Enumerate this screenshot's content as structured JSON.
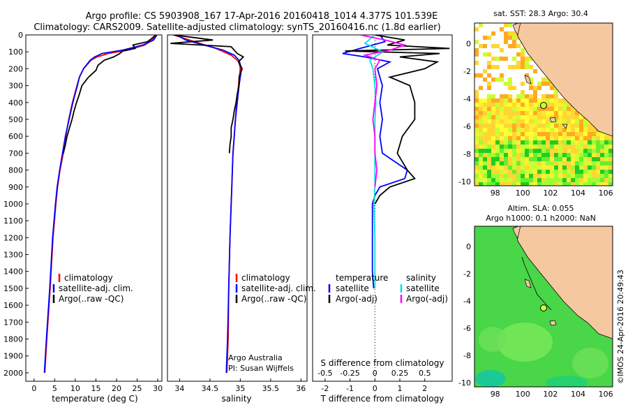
{
  "header": {
    "line1": "Argo profile: CS 5903908_167 17-Apr-2016 20160418_1014 4.377S 101.539E",
    "line2": "Climatology: CARS2009. Satellite-adjusted climatology: synTS_20160416.nc (1.8d earlier)"
  },
  "colors": {
    "climatology": "#ff0000",
    "satellite": "#0000ff",
    "argo": "#000000",
    "sat_s": "#00e0e0",
    "argo_s": "#ff00ff",
    "land": "#f5c8a0"
  },
  "chart_data": [
    {
      "type": "line",
      "title": "",
      "xlabel": "temperature (deg C)",
      "ylabel": "",
      "xlim": [
        -2,
        31
      ],
      "ylim": [
        2050,
        0
      ],
      "xticks": [
        "0",
        "5",
        "10",
        "15",
        "20",
        "25",
        "30"
      ],
      "yticks": [
        "0",
        "100",
        "200",
        "300",
        "400",
        "500",
        "600",
        "700",
        "800",
        "900",
        "1000",
        "1100",
        "1200",
        "1300",
        "1400",
        "1500",
        "1600",
        "1700",
        "1800",
        "1900",
        "2000"
      ],
      "legend": [
        "climatology",
        "satellite-adj. clim.",
        "Argo(..raw -QC)"
      ],
      "legend_position": "lower-center",
      "series": [
        {
          "name": "climatology",
          "color": "#ff0000",
          "depth": [
            0,
            30,
            60,
            90,
            110,
            130,
            150,
            200,
            250,
            300,
            400,
            500,
            600,
            700,
            800,
            900,
            1000,
            1200,
            1500,
            1800,
            2000
          ],
          "values": [
            29.6,
            28.6,
            26.8,
            22.8,
            18.0,
            15.3,
            13.8,
            12.0,
            11.0,
            10.4,
            9.3,
            8.4,
            7.7,
            7.1,
            6.3,
            5.7,
            5.3,
            4.6,
            3.9,
            3.1,
            2.6
          ]
        },
        {
          "name": "satellite-adj. clim.",
          "color": "#0000ff",
          "depth": [
            0,
            30,
            60,
            90,
            110,
            130,
            150,
            200,
            250,
            300,
            400,
            500,
            600,
            700,
            800,
            900,
            1000,
            1200,
            1500,
            1800,
            2000
          ],
          "values": [
            29.8,
            29.0,
            26.4,
            21.5,
            16.5,
            14.7,
            13.6,
            12.0,
            11.0,
            10.5,
            9.4,
            8.5,
            7.6,
            6.9,
            6.2,
            5.6,
            5.2,
            4.5,
            3.8,
            3.0,
            2.5
          ]
        },
        {
          "name": "Argo(..raw -QC)",
          "color": "#000000",
          "depth": [
            0,
            20,
            40,
            60,
            80,
            95,
            110,
            130,
            150,
            180,
            210,
            250,
            300,
            350,
            400,
            450,
            500,
            550,
            600,
            650,
            700
          ],
          "values": [
            29.5,
            28.6,
            27.5,
            24.0,
            24.5,
            21.5,
            20.8,
            19.3,
            17.0,
            15.5,
            15.0,
            13.2,
            11.6,
            11.0,
            10.3,
            9.7,
            9.2,
            8.6,
            8.0,
            7.6,
            7.1
          ]
        }
      ]
    },
    {
      "type": "line",
      "title": "",
      "xlabel": "salinity",
      "ylabel": "",
      "xlim": [
        33.8,
        36.1
      ],
      "ylim": [
        2050,
        0
      ],
      "xticks": [
        "34",
        "34.5",
        "35",
        "35.5",
        "36"
      ],
      "legend": [
        "climatology",
        "satellite-adj. clim.",
        "Argo(..raw -QC)"
      ],
      "legend_position": "lower-center",
      "annotation": [
        "Argo Australia",
        "PI: Susan Wijffels"
      ],
      "series": [
        {
          "name": "climatology",
          "color": "#ff0000",
          "depth": [
            0,
            40,
            80,
            120,
            160,
            200,
            300,
            400,
            500,
            600,
            700,
            800,
            900,
            1000,
            1200,
            1500,
            1800,
            2000
          ],
          "values": [
            33.9,
            34.25,
            34.6,
            34.85,
            34.98,
            35.0,
            34.97,
            34.94,
            34.92,
            34.9,
            34.88,
            34.87,
            34.86,
            34.85,
            34.83,
            34.81,
            34.8,
            34.78
          ]
        },
        {
          "name": "satellite-adj. clim.",
          "color": "#0000ff",
          "depth": [
            0,
            30,
            60,
            90,
            120,
            150,
            200,
            300,
            400,
            500,
            600,
            700,
            800,
            900,
            1000,
            1200,
            1500,
            1800,
            2000
          ],
          "values": [
            33.95,
            34.1,
            34.4,
            34.72,
            34.9,
            34.98,
            35.02,
            34.98,
            34.95,
            34.92,
            34.9,
            34.88,
            34.87,
            34.86,
            34.85,
            34.83,
            34.81,
            34.79,
            34.77
          ]
        },
        {
          "name": "Argo(..raw -QC)",
          "color": "#000000",
          "depth": [
            0,
            30,
            50,
            70,
            90,
            110,
            130,
            160,
            200,
            250,
            300,
            350,
            400,
            450,
            500,
            550,
            600,
            650,
            700
          ],
          "values": [
            33.9,
            34.55,
            33.85,
            34.85,
            34.9,
            34.95,
            35.05,
            34.97,
            35.03,
            34.98,
            34.98,
            34.95,
            34.93,
            34.9,
            34.88,
            34.85,
            34.85,
            34.83,
            34.82
          ]
        }
      ]
    },
    {
      "type": "line",
      "title": "",
      "xlabel": "T difference from climatology",
      "xlabel2": "S difference from climatology",
      "xlim": [
        -2.5,
        3.1
      ],
      "ylim": [
        2050,
        0
      ],
      "xticks": [
        "-2",
        "-1",
        "0",
        "1",
        "2"
      ],
      "xticks_s": [
        "-0.5",
        "-0.25",
        "0",
        "0.25",
        "0.5"
      ],
      "legend": {
        "temperature": [
          "temperature",
          "satellite",
          "Argo(-adj)"
        ],
        "salinity": [
          "salinity",
          "satellite",
          "Argo(-adj)"
        ]
      },
      "legend_position": "lower-center",
      "series": [
        {
          "name": "temperature satellite",
          "color": "#0000ff",
          "depth": [
            0,
            40,
            80,
            110,
            130,
            160,
            200,
            300,
            400,
            500,
            600,
            700,
            800,
            850,
            900,
            950,
            1000,
            1200,
            1400,
            1500
          ],
          "values": [
            0.2,
            0.4,
            -0.6,
            -1.3,
            -0.4,
            0.6,
            0.1,
            0.3,
            0.2,
            0.3,
            0.2,
            0.3,
            1.3,
            1.2,
            0.2,
            0.0,
            -0.1,
            -0.1,
            -0.1,
            -0.05
          ]
        },
        {
          "name": "temperature Argo(-adj)",
          "color": "#000000",
          "depth": [
            0,
            30,
            60,
            80,
            95,
            110,
            130,
            160,
            200,
            250,
            300,
            400,
            500,
            600,
            700,
            800,
            850,
            900,
            950,
            1000
          ],
          "values": [
            0.0,
            1.2,
            0.5,
            3.0,
            -1.2,
            2.6,
            1.0,
            2.5,
            2.0,
            0.6,
            1.4,
            1.6,
            1.6,
            1.1,
            0.9,
            1.3,
            1.6,
            0.6,
            0.2,
            0.0
          ]
        },
        {
          "name": "salinity satellite",
          "color": "#00e0e0",
          "depth": [
            0,
            50,
            100,
            150,
            200,
            300,
            400,
            500,
            600,
            700,
            800,
            900,
            1000,
            1200,
            1500
          ],
          "values": [
            0.0,
            -0.1,
            0.08,
            -0.05,
            -0.02,
            0.0,
            0.01,
            0.0,
            0.0,
            0.0,
            0.0,
            0.0,
            -0.01,
            0.0,
            0.0
          ]
        },
        {
          "name": "salinity Argo(-adj)",
          "color": "#ff00ff",
          "depth": [
            0,
            30,
            60,
            90,
            120,
            150,
            200,
            300,
            400,
            500,
            600,
            700,
            800,
            900
          ],
          "values": [
            -0.15,
            0.1,
            0.3,
            0.15,
            -0.1,
            0.05,
            0.0,
            0.02,
            0.0,
            -0.02,
            0.0,
            0.0,
            0.02,
            0.0
          ]
        }
      ]
    },
    {
      "type": "heatmap",
      "title": "sat. SST: 28.3  Argo: 30.4",
      "xlabel": "",
      "ylabel": "",
      "xlim": [
        96.5,
        106.5
      ],
      "ylim": [
        -10.3,
        1.5
      ],
      "xticks": [
        "98",
        "100",
        "102",
        "104",
        "106"
      ],
      "yticks": [
        "0",
        "-2",
        "-4",
        "-6",
        "-8",
        "-10"
      ],
      "marker": {
        "lon": 101.539,
        "lat": -4.377
      }
    },
    {
      "type": "heatmap",
      "title": "Altim. SLA: 0.055",
      "subtitle": "Argo h1000: 0.1 h2000: NaN",
      "xlim": [
        96.5,
        106.5
      ],
      "ylim": [
        -10.3,
        1.5
      ],
      "xticks": [
        "98",
        "100",
        "102",
        "104",
        "106"
      ],
      "yticks": [
        "0",
        "-2",
        "-4",
        "-6",
        "-8",
        "-10"
      ],
      "marker": {
        "lon": 101.539,
        "lat": -4.377
      }
    }
  ],
  "footer": {
    "credit": "©IMOS 24-Apr-2016 20:49:43"
  }
}
